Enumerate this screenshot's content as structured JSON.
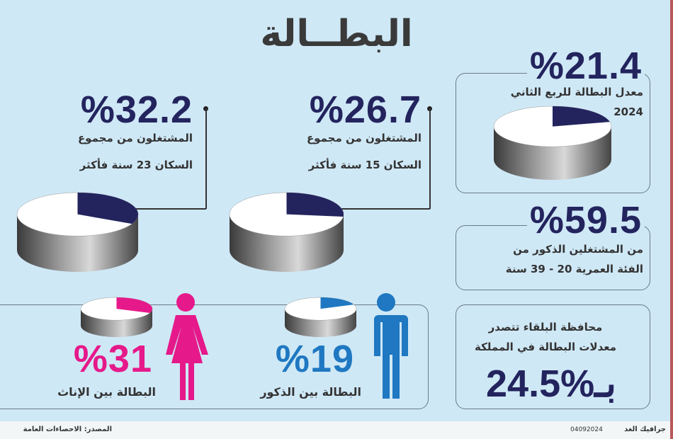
{
  "title": "البطــالة",
  "colors": {
    "navy": "#23245e",
    "male": "#1f78c1",
    "female": "#e6198a",
    "background": "#cfe8f6"
  },
  "stats": {
    "q2_rate": {
      "value": "%21.4",
      "line1": "معدل البطالة للربع الثاني",
      "line2": "2024"
    },
    "male_share": {
      "value": "%59.5",
      "line1": "من المشتغلين الذكور من",
      "line2": "الفئة العمرية 20 - 39 سنة"
    },
    "balqa": {
      "line1": "محافظة البلقاء تتصدر",
      "line2": "معدلات البطالة في المملكة",
      "value": "بـ%24.5"
    },
    "employed15": {
      "value": "%26.7",
      "line1": "المشتغلون من مجموع",
      "line2": "السكان 15 سنة فأكثر"
    },
    "employed23": {
      "value": "%32.2",
      "line1": "المشتغلون من مجموع",
      "line2": "السكان 23 سنة فأكثر"
    },
    "males": {
      "value": "%19",
      "label": "البطالة بين الذكور"
    },
    "females": {
      "value": "%31",
      "label": "البطالة بين الإناث"
    }
  },
  "footer": {
    "source": "المصدر: الاحصاءات العامة",
    "credit": "جرافيك الغد",
    "date": "04092024"
  },
  "chart_data": [
    {
      "type": "pie",
      "title": "معدل البطالة للربع الثاني 2024",
      "values": [
        21.4,
        78.6
      ],
      "colors": [
        "#23245e",
        "#ffffff"
      ]
    },
    {
      "type": "pie",
      "title": "المشتغلون من مجموع السكان 15 سنة فأكثر",
      "values": [
        26.7,
        73.3
      ],
      "colors": [
        "#23245e",
        "#ffffff"
      ]
    },
    {
      "type": "pie",
      "title": "المشتغلون من مجموع السكان 23 سنة فأكثر",
      "values": [
        32.2,
        67.8
      ],
      "colors": [
        "#23245e",
        "#ffffff"
      ]
    },
    {
      "type": "pie",
      "title": "البطالة بين الذكور",
      "values": [
        19,
        81
      ],
      "colors": [
        "#1f78c1",
        "#ffffff"
      ]
    },
    {
      "type": "pie",
      "title": "البطالة بين الإناث",
      "values": [
        31,
        69
      ],
      "colors": [
        "#e6198a",
        "#ffffff"
      ]
    }
  ]
}
